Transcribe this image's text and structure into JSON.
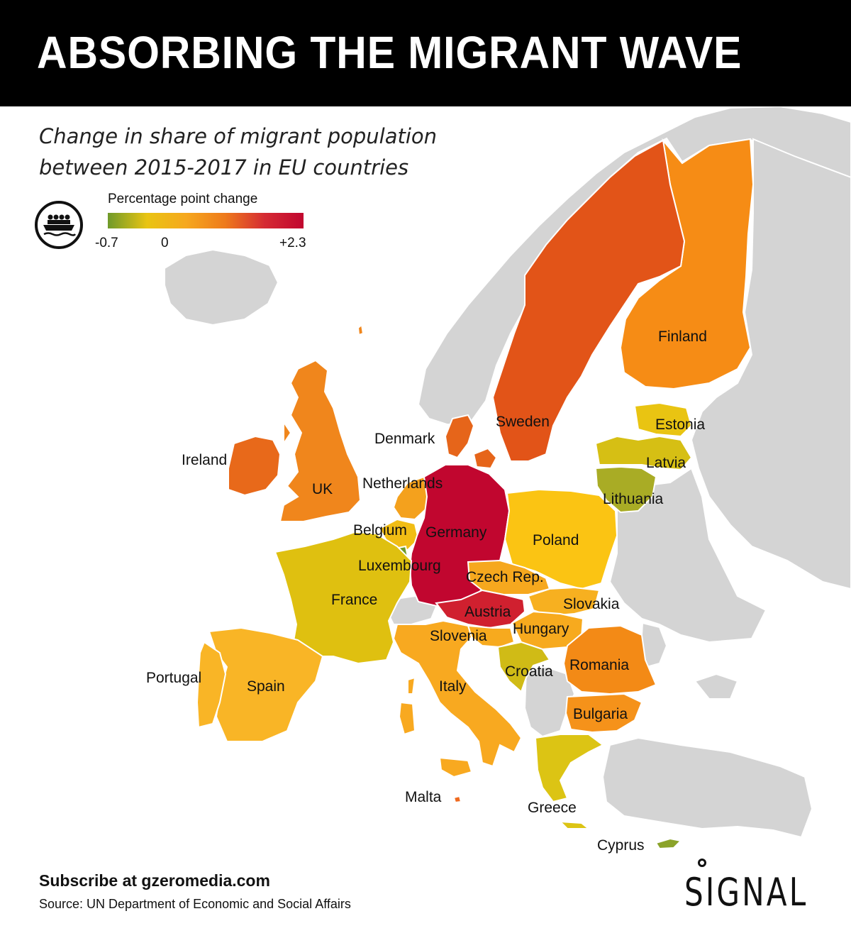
{
  "header": {
    "title": "ABSORBING THE MIGRANT WAVE"
  },
  "subtitle": {
    "line1": "Change in share of migrant population",
    "line2": "between 2015-2017 in EU countries"
  },
  "legend": {
    "title": "Percentage point change",
    "min_label": "-0.7",
    "zero_label": "0",
    "max_label": "+2.3",
    "color_scale": [
      "#6f9a2a",
      "#e9c412",
      "#f6a81e",
      "#ee7a1c",
      "#d52b33",
      "#c1062f"
    ],
    "icon": "migrant-boat-icon"
  },
  "colors": {
    "non_eu": "#d4d4d4",
    "germany": "#c1062f",
    "austria": "#d0202f",
    "sweden": "#e25418",
    "denmark": "#e6651a",
    "ireland": "#e8691a",
    "uk": "#f0861c",
    "finland": "#f68c15",
    "romania": "#f38a16",
    "bulgaria": "#f5921a",
    "netherlands": "#f4a11d",
    "czech": "#f6a81e",
    "slovakia": "#f7b020",
    "hungary": "#f7aa1e",
    "slovenia": "#f7aa1e",
    "italy": "#f8a920",
    "spain": "#f9b526",
    "portugal": "#f9b526",
    "belgium": "#f1bd14",
    "malta": "#ef6a1f",
    "france": "#dfc010",
    "poland": "#fbc413",
    "estonia": "#e9c412",
    "latvia": "#d6bf14",
    "croatia": "#d0bb16",
    "greece": "#dcc414",
    "lithuania": "#a9ac25",
    "luxembourg": "#6f9a2a",
    "cyprus": "#8ba32a"
  },
  "countries": [
    {
      "name": "Finland",
      "change_rank": "high"
    },
    {
      "name": "Sweden",
      "change_rank": "high"
    },
    {
      "name": "Estonia",
      "change_rank": "low"
    },
    {
      "name": "Denmark",
      "change_rank": "high"
    },
    {
      "name": "Latvia",
      "change_rank": "low"
    },
    {
      "name": "Ireland",
      "change_rank": "high"
    },
    {
      "name": "Netherlands",
      "change_rank": "mid"
    },
    {
      "name": "UK",
      "change_rank": "high"
    },
    {
      "name": "Lithuania",
      "change_rank": "negative"
    },
    {
      "name": "Belgium",
      "change_rank": "low"
    },
    {
      "name": "Germany",
      "change_rank": "highest"
    },
    {
      "name": "Poland",
      "change_rank": "low"
    },
    {
      "name": "Luxembourg",
      "change_rank": "lowest"
    },
    {
      "name": "Czech Rep.",
      "change_rank": "mid"
    },
    {
      "name": "France",
      "change_rank": "low"
    },
    {
      "name": "Slovakia",
      "change_rank": "mid"
    },
    {
      "name": "Austria",
      "change_rank": "highest"
    },
    {
      "name": "Hungary",
      "change_rank": "mid"
    },
    {
      "name": "Slovenia",
      "change_rank": "mid"
    },
    {
      "name": "Croatia",
      "change_rank": "low"
    },
    {
      "name": "Romania",
      "change_rank": "high"
    },
    {
      "name": "Portugal",
      "change_rank": "mid"
    },
    {
      "name": "Spain",
      "change_rank": "mid"
    },
    {
      "name": "Italy",
      "change_rank": "mid"
    },
    {
      "name": "Bulgaria",
      "change_rank": "high"
    },
    {
      "name": "Malta",
      "change_rank": "high"
    },
    {
      "name": "Greece",
      "change_rank": "low"
    },
    {
      "name": "Cyprus",
      "change_rank": "negative"
    }
  ],
  "footer": {
    "subscribe": "Subscribe at gzeromedia.com",
    "source": "Source: UN Department of Economic and Social Affairs",
    "brand": "SIGNAL"
  }
}
